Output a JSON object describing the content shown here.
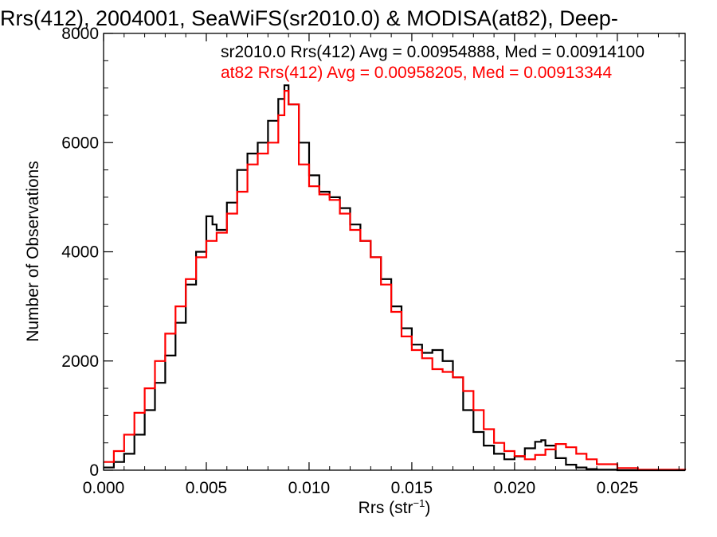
{
  "chart_data": {
    "type": "line",
    "title": "Rrs(412), 2004001, SeaWiFS(sr2010.0) & MODISA(at82), Deep-",
    "xlabel": "Rrs (str",
    "xlabel_sup": "−1",
    "xlabel_close": ")",
    "ylabel": "Number of Observations",
    "xlim": [
      0.0,
      0.0283
    ],
    "ylim": [
      0,
      8000
    ],
    "xticks": [
      0.0,
      0.005,
      0.01,
      0.015,
      0.02,
      0.025
    ],
    "xtick_labels": [
      "0.000",
      "0.005",
      "0.010",
      "0.015",
      "0.020",
      "0.025"
    ],
    "yticks": [
      0,
      2000,
      4000,
      6000,
      8000
    ],
    "ytick_labels": [
      "0",
      "2000",
      "4000",
      "6000",
      "8000"
    ],
    "grid": false,
    "legend_position": "top-right",
    "annotations": [
      {
        "text": "sr2010.0 Rrs(412) Avg = 0.00954888, Med = 0.00914100",
        "color": "#000000"
      },
      {
        "text": "at82 Rrs(412) Avg = 0.00958205, Med = 0.00913344",
        "color": "#ff0000"
      }
    ],
    "series": [
      {
        "color": "#000000",
        "step": true,
        "x": [
          0.0,
          0.0005,
          0.001,
          0.0015,
          0.002,
          0.0025,
          0.003,
          0.0035,
          0.004,
          0.0045,
          0.005,
          0.0053,
          0.0055,
          0.006,
          0.0065,
          0.007,
          0.0075,
          0.008,
          0.0085,
          0.0088,
          0.009,
          0.0095,
          0.01,
          0.0105,
          0.011,
          0.0115,
          0.012,
          0.0125,
          0.013,
          0.0135,
          0.014,
          0.0145,
          0.015,
          0.0155,
          0.016,
          0.0165,
          0.017,
          0.0175,
          0.018,
          0.0185,
          0.019,
          0.0195,
          0.02,
          0.0205,
          0.021,
          0.0213,
          0.0215,
          0.022,
          0.0225,
          0.023,
          0.0235,
          0.024,
          0.025,
          0.0283
        ],
        "y": [
          50,
          150,
          300,
          650,
          1100,
          1600,
          2100,
          2700,
          3400,
          4000,
          4650,
          4500,
          4400,
          4900,
          5500,
          5800,
          6000,
          6400,
          6800,
          7050,
          6700,
          6000,
          5400,
          5100,
          5000,
          4800,
          4500,
          4200,
          3900,
          3500,
          3000,
          2600,
          2300,
          2150,
          2200,
          2000,
          1700,
          1100,
          700,
          450,
          300,
          200,
          250,
          400,
          520,
          550,
          450,
          220,
          100,
          50,
          20,
          10,
          0,
          0
        ]
      },
      {
        "color": "#ff0000",
        "step": true,
        "x": [
          0.0,
          0.0005,
          0.001,
          0.0015,
          0.002,
          0.0025,
          0.003,
          0.0035,
          0.004,
          0.0045,
          0.005,
          0.0055,
          0.006,
          0.0065,
          0.007,
          0.0075,
          0.008,
          0.0085,
          0.0088,
          0.009,
          0.0095,
          0.01,
          0.0105,
          0.011,
          0.0115,
          0.012,
          0.0125,
          0.013,
          0.0135,
          0.014,
          0.0145,
          0.015,
          0.0155,
          0.016,
          0.0165,
          0.017,
          0.0175,
          0.018,
          0.0185,
          0.019,
          0.0195,
          0.02,
          0.0205,
          0.021,
          0.0215,
          0.022,
          0.0225,
          0.023,
          0.0235,
          0.024,
          0.025,
          0.026,
          0.0283
        ],
        "y": [
          150,
          350,
          650,
          1050,
          1500,
          2000,
          2500,
          3000,
          3500,
          3900,
          4200,
          4350,
          4700,
          5100,
          5600,
          5800,
          6000,
          6500,
          6950,
          6700,
          5600,
          5200,
          5050,
          4950,
          4700,
          4400,
          4200,
          3900,
          3400,
          2900,
          2450,
          2200,
          2050,
          1850,
          1800,
          1700,
          1450,
          1100,
          750,
          500,
          350,
          260,
          200,
          280,
          380,
          480,
          420,
          300,
          200,
          110,
          40,
          10,
          0
        ]
      }
    ]
  }
}
